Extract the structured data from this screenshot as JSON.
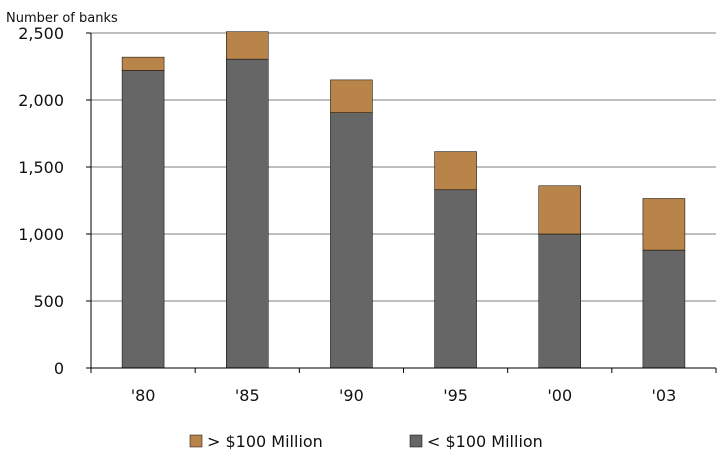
{
  "chart_data": {
    "type": "bar",
    "stacked": true,
    "ylabel": "Number of banks",
    "xlabel": "",
    "ylim": [
      0,
      2500
    ],
    "yticks": [
      0,
      500,
      1000,
      1500,
      2000,
      2500
    ],
    "ytick_labels": [
      "0",
      "500",
      "1,000",
      "1,500",
      "2,000",
      "2,500"
    ],
    "categories": [
      "'80",
      "'85",
      "'90",
      "'95",
      "'00",
      "'03"
    ],
    "series": [
      {
        "name": "< $100 Million",
        "color": "#666666",
        "values": [
          2220,
          2305,
          1905,
          1330,
          1000,
          880
        ]
      },
      {
        "name": "> $100 Million",
        "color": "#b8844a",
        "values": [
          100,
          205,
          245,
          285,
          360,
          385
        ]
      }
    ],
    "legend": {
      "placement": "bottom",
      "order": [
        "> $100 Million",
        "< $100 Million"
      ]
    },
    "grid": "horizontal"
  }
}
